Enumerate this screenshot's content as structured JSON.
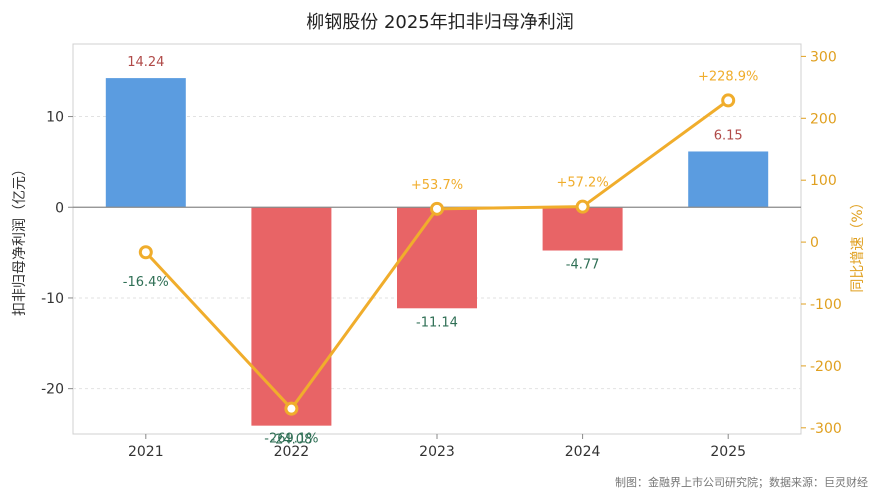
{
  "chart_data": {
    "type": "bar",
    "title": "柳钢股份 2025年扣非归母净利润",
    "categories": [
      "2021",
      "2022",
      "2023",
      "2024",
      "2025"
    ],
    "series": [
      {
        "name": "扣非归母净利润",
        "axis": "left",
        "values": [
          14.24,
          -24.08,
          -11.14,
          -4.77,
          6.15
        ],
        "labels": [
          "14.24",
          "-24.08",
          "-11.14",
          "-4.77",
          "6.15"
        ],
        "positive_color": "#5b9ce0",
        "negative_color": "#e86466"
      },
      {
        "name": "同比增速",
        "axis": "right",
        "type": "line",
        "values": [
          -16.4,
          -269.1,
          53.7,
          57.2,
          228.9
        ],
        "labels": [
          "-16.4%",
          "-269.1%",
          "+53.7%",
          "+57.2%",
          "+228.9%"
        ],
        "color": "#f0ad2c"
      }
    ],
    "ylabel": "扣非归母净利润（亿元）",
    "y2label": "同比增速（%）",
    "ylim": [
      -25,
      18
    ],
    "y2lim": [
      -310,
      320
    ],
    "yticks": [
      10,
      0,
      -10,
      -20
    ],
    "y2ticks": [
      300,
      200,
      100,
      0,
      -100,
      -200,
      -300
    ],
    "grid": true,
    "legend": "none",
    "label_color_positive": "#b04a48",
    "label_color_negative": "#2f6f55",
    "axis_left_color": "#333333",
    "axis_right_color": "#e0a020",
    "source": "制图：金融界上市公司研究院；数据来源：巨灵财经"
  }
}
